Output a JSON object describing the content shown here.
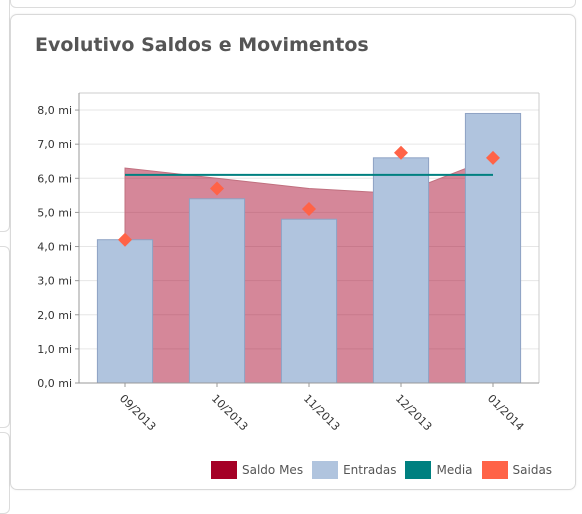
{
  "chart_data": {
    "type": "bar",
    "title": "Evolutivo Saldos e Movimentos",
    "categories": [
      "09/2013",
      "10/2013",
      "11/2013",
      "12/2013",
      "01/2014"
    ],
    "ylim": [
      0,
      8.5
    ],
    "yticks": [
      0,
      1,
      2,
      3,
      4,
      5,
      6,
      7,
      8
    ],
    "ytick_labels": [
      "0,0 mi",
      "1,0 mi",
      "2,0 mi",
      "3,0 mi",
      "4,0 mi",
      "5,0 mi",
      "6,0 mi",
      "7,0 mi",
      "8,0 mi"
    ],
    "grid": true,
    "legend_position": "bottom-right",
    "series": [
      {
        "name": "Saldo Mes",
        "type": "area",
        "color": "#a50026",
        "values": [
          6.3,
          6.0,
          5.7,
          5.55,
          6.6
        ]
      },
      {
        "name": "Entradas",
        "type": "bar",
        "color": "#b0c4de",
        "values": [
          4.2,
          5.4,
          4.8,
          6.6,
          7.9
        ]
      },
      {
        "name": "Media",
        "type": "line",
        "color": "#008080",
        "values": [
          6.1,
          6.1,
          6.1,
          6.1,
          6.1
        ]
      },
      {
        "name": "Saidas",
        "type": "scatter",
        "marker": "diamond",
        "color": "#ff6347",
        "values": [
          4.2,
          5.7,
          5.1,
          6.75,
          6.6
        ]
      }
    ]
  }
}
